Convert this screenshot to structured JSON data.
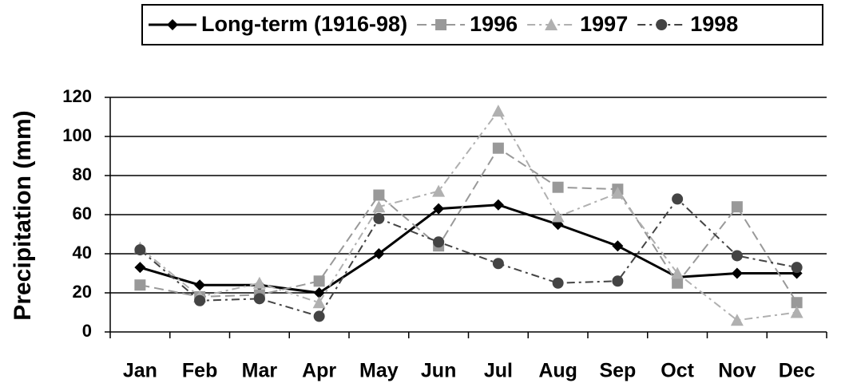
{
  "chart_data": {
    "type": "line",
    "y_label": "Precipitation (mm)",
    "categories": [
      "Jan",
      "Feb",
      "Mar",
      "Apr",
      "May",
      "Jun",
      "Jul",
      "Aug",
      "Sep",
      "Oct",
      "Nov",
      "Dec"
    ],
    "series": [
      {
        "name": "Long-term (1916-98)",
        "color": "#000000",
        "marker": "diamond",
        "dash": "solid",
        "values": [
          33,
          24,
          24,
          20,
          40,
          63,
          65,
          55,
          44,
          28,
          30,
          30
        ]
      },
      {
        "name": "1996",
        "color": "#999999",
        "marker": "square",
        "dash": "dashed",
        "values": [
          24,
          18,
          19,
          26,
          70,
          44,
          94,
          74,
          73,
          25,
          64,
          15
        ]
      },
      {
        "name": "1997",
        "color": "#b0b0b0",
        "marker": "triangle",
        "dash": "dashdot",
        "values": [
          43,
          18,
          25,
          15,
          64,
          72,
          113,
          59,
          71,
          30,
          6,
          10
        ]
      },
      {
        "name": "1998",
        "color": "#444444",
        "marker": "circle",
        "dash": "dashdot",
        "values": [
          42,
          16,
          17,
          8,
          58,
          46,
          35,
          25,
          26,
          68,
          39,
          33
        ]
      }
    ],
    "ylim": [
      0,
      120
    ],
    "yticks": [
      0,
      20,
      40,
      60,
      80,
      100,
      120
    ],
    "grid": true,
    "legend": "top"
  }
}
